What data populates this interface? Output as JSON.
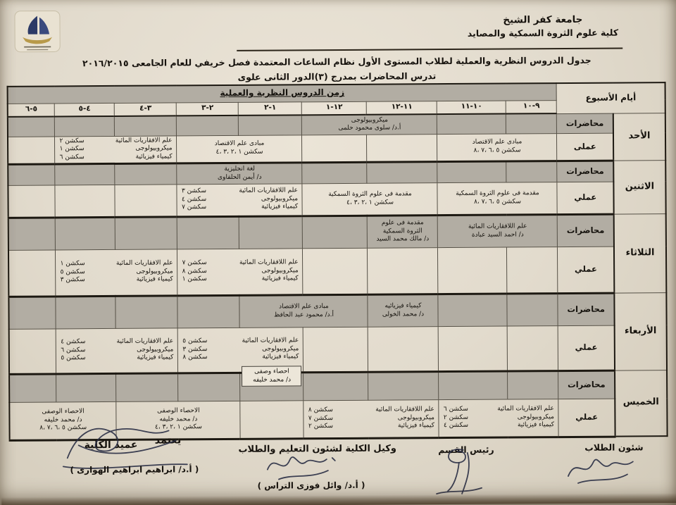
{
  "header": {
    "university": "جامعة كفر الشيخ",
    "faculty": "كلية علوم الثروة السمكية والمصايد",
    "title_line1": "جدول الدروس النظرية والعملية لطلاب المستوى الأول نظام الساعات المعتمدة فصل خريفي  للعام الجامعى ٢٠١٦/٢٠١٥",
    "title_line2": "تدرس المحاضرات بمدرج (٣)الدور الثانى علوى",
    "logo_icon": "sailboat-university-emblem-icon"
  },
  "colors": {
    "paper": "#e4ddcf",
    "shaded_row": "#b2ada3",
    "ink": "#17130e"
  },
  "table": {
    "week_header": "أيام الأسبوع",
    "time_header": "زمن الدروس النظرية والعملية",
    "slots": [
      "٩-١٠",
      "١٠-١١",
      "١١-١٢",
      "١٢-١",
      "١-٢",
      "٢-٣",
      "٣-٤",
      "٤-٥",
      "٥-٦"
    ],
    "days": [
      {
        "name": "الأحد",
        "lecture_label": "محاضرات",
        "practical_label": "عملى",
        "lecture_cells": [
          {
            "span": 1
          },
          {
            "span": 1
          },
          {
            "span": 2,
            "lines": [
              "ميكروبيولوجى",
              "أ.د/ سلوى محمود حلمى"
            ]
          },
          {
            "span": 1
          },
          {
            "span": 1
          },
          {
            "span": 1
          },
          {
            "span": 1
          },
          {
            "span": 1
          }
        ],
        "practical_cells": [
          {
            "span": 2,
            "lines": [
              "مبادى علم الاقتصاد",
              "سكشن ٥ ،٦ ،٧ ،٨"
            ]
          },
          {
            "span": 1
          },
          {
            "span": 1
          },
          {
            "span": 2,
            "lines": [
              "مبادى علم الاقتصاد",
              "سكشن ١ ،٢ ،٣ ،٤"
            ]
          },
          {
            "span": 2,
            "lines": [
              [
                "علم الافقاريات المائية",
                "سكشن ٢"
              ],
              [
                "ميكروبيولوجى",
                "سكشن ١"
              ],
              [
                "كيمياء فيزيائية",
                "سكشن ٦"
              ]
            ]
          },
          {
            "span": 1
          }
        ]
      },
      {
        "name": "الاثنين",
        "lecture_label": "محاضرات",
        "practical_label": "عملي",
        "lecture_cells": [
          {
            "span": 1
          },
          {
            "span": 1
          },
          {
            "span": 1
          },
          {
            "span": 1
          },
          {
            "span": 2,
            "lines": [
              "لغة انجليزية",
              "د/ أيمن الحلفاوى"
            ]
          },
          {
            "span": 1
          },
          {
            "span": 1
          },
          {
            "span": 1
          }
        ],
        "practical_cells": [
          {
            "span": 2,
            "lines": [
              "مقدمة فى علوم الثروة السمكية",
              "سكشن ٥ ،٦ ،٧ ،٨"
            ]
          },
          {
            "span": 2,
            "lines": [
              "مقدمة فى علوم الثروة السمكية",
              "سكشن ١ ،٢ ،٣ ،٤"
            ]
          },
          {
            "span": 2,
            "lines": [
              [
                "علم اللافقاريات المائية",
                "سكشن ٣"
              ],
              [
                "ميكروبيولوجى",
                "سكشن ٤"
              ],
              [
                "كيمياء فيزيائية",
                "سكشن ٧"
              ]
            ]
          },
          {
            "span": 1
          },
          {
            "span": 1
          },
          {
            "span": 1
          }
        ]
      },
      {
        "name": "الثلاثاء",
        "lecture_label": "محاضرات",
        "practical_label": "عملي",
        "lecture_cells": [
          {
            "span": 2,
            "lines": [
              "علم اللافقاريات المائية",
              "د/ احمد السيد عبادة"
            ]
          },
          {
            "span": 1,
            "lines": [
              "مقدمة فى علوم",
              "الثروة السمكية",
              "د/ مالك محمد السيد"
            ]
          },
          {
            "span": 1
          },
          {
            "span": 1
          },
          {
            "span": 1
          },
          {
            "span": 1
          },
          {
            "span": 1
          },
          {
            "span": 1
          }
        ],
        "practical_cells": [
          {
            "span": 1
          },
          {
            "span": 1
          },
          {
            "span": 1
          },
          {
            "span": 1
          },
          {
            "span": 2,
            "lines": [
              [
                "علم اللافقاريات المائية",
                "سكشن ٧"
              ],
              [
                "ميكروبيولوجى",
                "سكشن ٨"
              ],
              [
                "كيمياء فيزيائية",
                "سكشن ١"
              ]
            ]
          },
          {
            "span": 2,
            "lines": [
              [
                "علم الافقاريات المائية",
                "سكشن ١"
              ],
              [
                "ميكروبيولوجى",
                "سكشن ٥"
              ],
              [
                "كيمياء فيزيائية",
                "سكشن ٣"
              ]
            ]
          },
          {
            "span": 1
          }
        ]
      },
      {
        "name": "الأربعاء",
        "lecture_label": "محاضرات",
        "practical_label": "عملي",
        "lecture_cells": [
          {
            "span": 1
          },
          {
            "span": 1
          },
          {
            "span": 1,
            "lines": [
              "كيمياء فيزيائيه",
              "د/ محمد الخولى"
            ]
          },
          {
            "span": 2,
            "lines": [
              "مبادى علم الاقتصاد",
              "أ.د/ محمود عبد الحافظ"
            ]
          },
          {
            "span": 1
          },
          {
            "span": 1
          },
          {
            "span": 1
          },
          {
            "span": 1
          }
        ],
        "practical_cells": [
          {
            "span": 1
          },
          {
            "span": 1
          },
          {
            "span": 1
          },
          {
            "span": 1
          },
          {
            "span": 2,
            "lines": [
              [
                "علم الافقاريات المائية",
                "سكشن ٥"
              ],
              [
                "ميكروبيولوجى",
                "سكشن ٣"
              ],
              [
                "كيمياء فيزيائية",
                "سكشن ٨"
              ]
            ]
          },
          {
            "span": 2,
            "lines": [
              [
                "علم الافقاريات المائية",
                "سكشن ٤"
              ],
              [
                "ميكروبيولوجى",
                "سكشن ٦"
              ],
              [
                "كيمياء فيزيائية",
                "سكشن ٥"
              ]
            ]
          },
          {
            "span": 1
          }
        ]
      },
      {
        "name": "الخميس",
        "lecture_label": "محاضرات",
        "practical_label": "عملي",
        "lecture_cells": [
          {
            "span": 1
          },
          {
            "span": 1
          },
          {
            "span": 1
          },
          {
            "span": 1
          },
          {
            "span": 1,
            "white": true,
            "raised": true,
            "lines": [
              "احصاء وصفى",
              "د/ محمد خليفه"
            ]
          },
          {
            "span": 1
          },
          {
            "span": 1
          },
          {
            "span": 1
          },
          {
            "span": 1
          }
        ],
        "practical_cells": [
          {
            "span": 2,
            "lines": [
              [
                "علم الافقاريات المائية",
                "سكشن ٦"
              ],
              [
                "ميكروبيولوجى",
                "سكشن ٢"
              ],
              [
                "كيمياء فيزيائية",
                "سكشن ٤"
              ]
            ]
          },
          {
            "span": 2,
            "lines": [
              [
                "علم اللافقاريات المائية",
                "سكشن ٨"
              ],
              [
                "ميكروبيولوجى",
                "سكشن ٧"
              ],
              [
                "كيمياء فيزيائية",
                "سكشن ٢"
              ]
            ]
          },
          {
            "span": 1
          },
          {
            "span": 2,
            "lines": [
              "الاحصاء الوصفى",
              "د/ محمد خليفه",
              "سكشن ١ ،٢ ،٣ ،٤"
            ]
          },
          {
            "span": 2,
            "lines": [
              "الاحصاء الوصفى",
              "د/ محمد خليفه",
              "سكشن ٥ ،٦ ،٧ ،٨"
            ]
          }
        ]
      }
    ]
  },
  "footer": {
    "student_affairs_label": "شئون الطلاب",
    "dept_head_label": "رئيس القسم",
    "vice_dean_label": "وكيل الكلية لشئون التعليم والطلاب",
    "vice_dean_name": "( أ.د/ وائل فوزى التراس )",
    "approve_label": "يعتمد",
    "dean_label": "عميد الكلية",
    "dean_name": "( أ.د/ ابراهيم ابراهيم الهوارى )"
  }
}
